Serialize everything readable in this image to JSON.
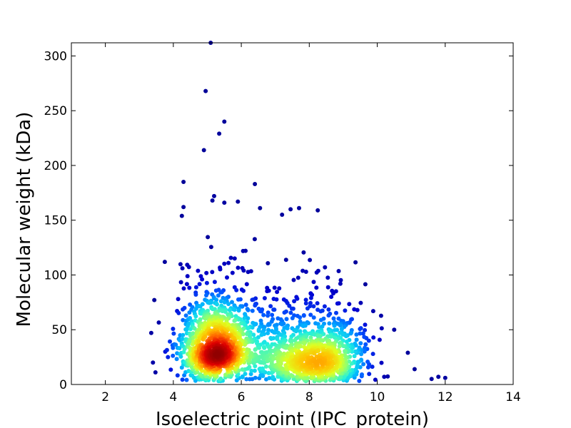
{
  "chart_data": {
    "type": "scatter",
    "xlabel": "Isoelectric point (IPC_protein)",
    "ylabel": "Molecular weight (kDa)",
    "xlim": [
      1,
      14
    ],
    "ylim": [
      0,
      312
    ],
    "xticks": [
      2,
      4,
      6,
      8,
      10,
      12,
      14
    ],
    "yticks": [
      0,
      50,
      100,
      150,
      200,
      250,
      300
    ],
    "grid": false,
    "colormap": "jet (point density)",
    "density_colors": [
      "#00008f",
      "#0000d0",
      "#0050ff",
      "#00b0ff",
      "#20f0e0",
      "#80ff80",
      "#e0ff20",
      "#ffc000",
      "#ff6000",
      "#e00000",
      "#900000"
    ],
    "clusters": [
      {
        "center_x": 5.3,
        "center_y": 30,
        "spread_x": 0.55,
        "spread_y": 14,
        "count": 1200
      },
      {
        "center_x": 8.3,
        "center_y": 22,
        "spread_x": 0.7,
        "spread_y": 12,
        "count": 900
      },
      {
        "center_x": 6.9,
        "center_y": 28,
        "spread_x": 0.5,
        "spread_y": 14,
        "count": 250
      }
    ],
    "outliers": [
      {
        "x": 5.1,
        "y": 312
      },
      {
        "x": 4.95,
        "y": 268
      },
      {
        "x": 5.5,
        "y": 240
      },
      {
        "x": 5.35,
        "y": 229
      },
      {
        "x": 4.9,
        "y": 214
      },
      {
        "x": 4.3,
        "y": 185
      },
      {
        "x": 6.4,
        "y": 183
      },
      {
        "x": 5.2,
        "y": 172
      },
      {
        "x": 5.15,
        "y": 168
      },
      {
        "x": 5.9,
        "y": 167
      },
      {
        "x": 5.5,
        "y": 166
      },
      {
        "x": 4.3,
        "y": 162
      },
      {
        "x": 6.55,
        "y": 161
      },
      {
        "x": 7.7,
        "y": 161
      },
      {
        "x": 7.45,
        "y": 160
      },
      {
        "x": 8.25,
        "y": 159
      },
      {
        "x": 7.2,
        "y": 155
      },
      {
        "x": 4.25,
        "y": 154
      },
      {
        "x": 3.75,
        "y": 112
      },
      {
        "x": 3.35,
        "y": 47
      },
      {
        "x": 3.4,
        "y": 20
      },
      {
        "x": 10.5,
        "y": 50
      },
      {
        "x": 10.9,
        "y": 29
      },
      {
        "x": 11.8,
        "y": 7
      },
      {
        "x": 12.0,
        "y": 6
      },
      {
        "x": 11.6,
        "y": 5
      },
      {
        "x": 11.1,
        "y": 14
      }
    ]
  }
}
